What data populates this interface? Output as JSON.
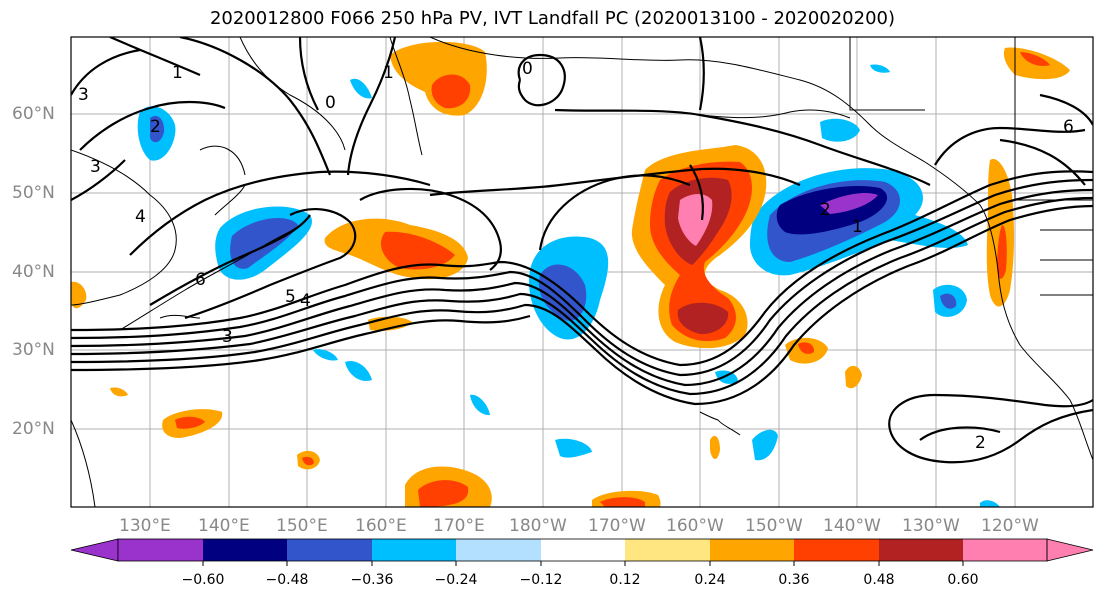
{
  "title": "2020012800 F066 250 hPa PV, IVT Landfall PC (2020013100 - 2020020200)",
  "lat_labels": [
    "60°N",
    "50°N",
    "40°N",
    "30°N",
    "20°N"
  ],
  "lon_labels": [
    "130°E",
    "140°E",
    "150°E",
    "160°E",
    "170°E",
    "180°W",
    "170°W",
    "160°W",
    "150°W",
    "140°W",
    "130°W",
    "120°W"
  ],
  "contour_labels": [
    "1",
    "3",
    "2",
    "3",
    "0",
    "1",
    "0",
    "4",
    "6",
    "5",
    "4",
    "3",
    "2",
    "1",
    "6",
    "2"
  ],
  "colorbar": {
    "colors": [
      "#9933cc",
      "#000080",
      "#3355cc",
      "#00bfff",
      "#b3e0ff",
      "#ffffff",
      "#ffe680",
      "#ffa500",
      "#ff4000",
      "#b22222",
      "#ff80b0"
    ],
    "tick_labels": [
      "−0.60",
      "−0.48",
      "−0.36",
      "−0.24",
      "−0.12",
      "0.12",
      "0.24",
      "0.36",
      "0.48",
      "0.60"
    ]
  }
}
